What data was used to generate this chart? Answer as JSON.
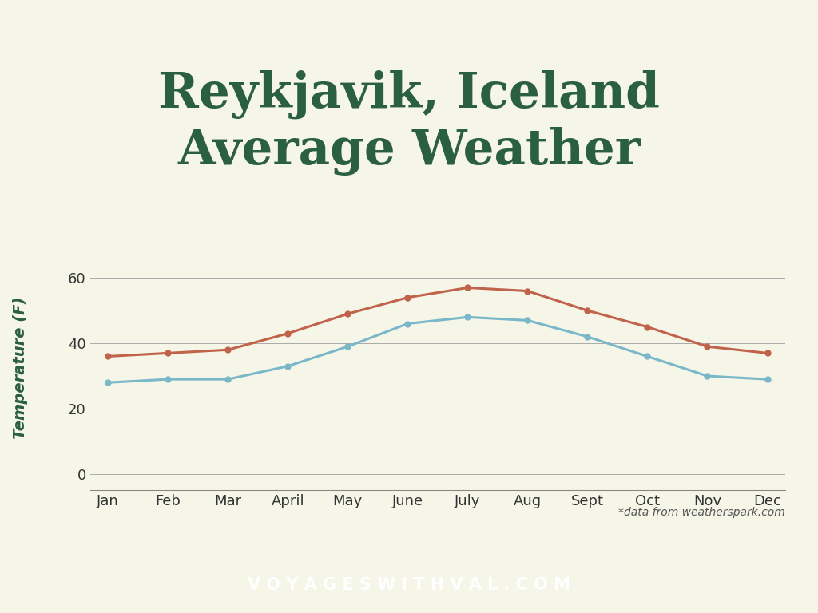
{
  "title": "Reykjavik, Iceland\nAverage Weather",
  "ylabel": "Temperature (F)",
  "months": [
    "Jan",
    "Feb",
    "Mar",
    "April",
    "May",
    "June",
    "July",
    "Aug",
    "Sept",
    "Oct",
    "Nov",
    "Dec"
  ],
  "high_temps": [
    36,
    37,
    38,
    43,
    49,
    54,
    57,
    56,
    50,
    45,
    39,
    37
  ],
  "low_temps": [
    28,
    29,
    29,
    33,
    39,
    46,
    48,
    47,
    42,
    36,
    30,
    29
  ],
  "high_color": "#C1624A",
  "low_color": "#7AB8C9",
  "background_color": "#F5F5E8",
  "title_color": "#2A5F3F",
  "ylabel_color": "#2A5F3F",
  "grid_color": "#AAAAAA",
  "yticks": [
    0,
    20,
    40,
    60
  ],
  "ylim": [
    -5,
    70
  ],
  "footer_bg_color": "#2A5F3F",
  "footer_text": "V O Y A G E S W I T H V A L . C O M",
  "attribution": "*data from weatherspark.com",
  "line_width": 2.2,
  "marker_size": 5
}
